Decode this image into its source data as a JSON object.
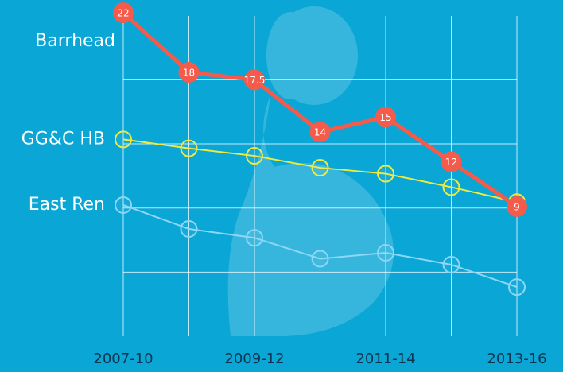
{
  "chart_data": {
    "type": "line",
    "categories": [
      "2007-10",
      null,
      "2009-12",
      null,
      "2011-14",
      null,
      "2013-16"
    ],
    "series": [
      {
        "name": "Barrhead",
        "color": "#f45b4b",
        "values": [
          22,
          18,
          17.5,
          14,
          15,
          12,
          9
        ],
        "data_labels": true
      },
      {
        "name": "GG&C HB",
        "color": "#eeea3e",
        "values": [
          13.5,
          12.9,
          12.4,
          11.6,
          11.2,
          10.3,
          9.3
        ]
      },
      {
        "name": "East Ren",
        "color": "#8ed6f5",
        "values": [
          9.1,
          7.5,
          6.9,
          5.5,
          5.9,
          5.1,
          3.6
        ]
      }
    ],
    "ylim": [
      0.3,
      22
    ],
    "yticks": [
      4.6,
      8.9,
      13.2,
      17.5
    ],
    "grid": true
  }
}
